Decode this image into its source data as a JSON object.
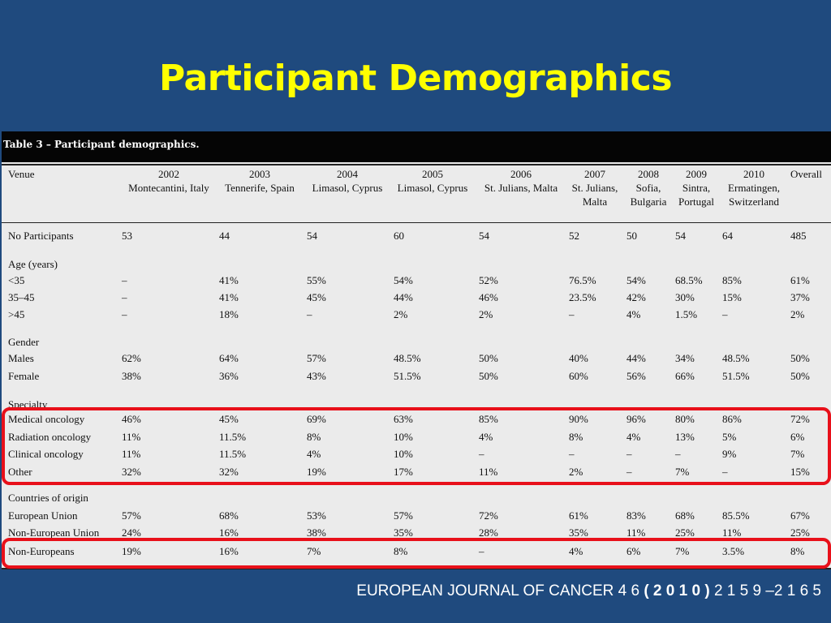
{
  "slide": {
    "title": "Participant Demographics"
  },
  "table": {
    "caption": "Table 3 – Participant demographics.",
    "columns": [
      {
        "year": "",
        "place": "Venue",
        "place2": ""
      },
      {
        "year": "2002",
        "place": "Montecantini, Italy",
        "place2": ""
      },
      {
        "year": "2003",
        "place": "Tennerife, Spain",
        "place2": ""
      },
      {
        "year": "2004",
        "place": "Limasol, Cyprus",
        "place2": ""
      },
      {
        "year": "2005",
        "place": "Limasol, Cyprus",
        "place2": ""
      },
      {
        "year": "2006",
        "place": "St. Julians, Malta",
        "place2": ""
      },
      {
        "year": "2007",
        "place": "St. Julians,",
        "place2": "Malta"
      },
      {
        "year": "2008",
        "place": "Sofia,",
        "place2": "Bulgaria"
      },
      {
        "year": "2009",
        "place": "Sintra,",
        "place2": "Portugal"
      },
      {
        "year": "2010",
        "place": "Ermatingen,",
        "place2": "Switzerland"
      },
      {
        "year": "Overall",
        "place": "",
        "place2": ""
      }
    ],
    "sections": {
      "age": "Age (years)",
      "gender": "Gender",
      "specialty": "Specialty",
      "countries": "Countries of origin"
    },
    "rows": [
      {
        "label": "No Participants",
        "values": [
          "53",
          "44",
          "54",
          "60",
          "54",
          "52",
          "50",
          "54",
          "64",
          "485"
        ]
      },
      {
        "label": "<35",
        "values": [
          "–",
          "41%",
          "55%",
          "54%",
          "52%",
          "76.5%",
          "54%",
          "68.5%",
          "85%",
          "61%"
        ]
      },
      {
        "label": "35–45",
        "values": [
          "–",
          "41%",
          "45%",
          "44%",
          "46%",
          "23.5%",
          "42%",
          "30%",
          "15%",
          "37%"
        ]
      },
      {
        "label": ">45",
        "values": [
          "–",
          "18%",
          "–",
          "2%",
          "2%",
          "–",
          "4%",
          "1.5%",
          "–",
          "2%"
        ]
      },
      {
        "label": "Males",
        "values": [
          "62%",
          "64%",
          "57%",
          "48.5%",
          "50%",
          "40%",
          "44%",
          "34%",
          "48.5%",
          "50%"
        ]
      },
      {
        "label": "Female",
        "values": [
          "38%",
          "36%",
          "43%",
          "51.5%",
          "50%",
          "60%",
          "56%",
          "66%",
          "51.5%",
          "50%"
        ]
      },
      {
        "label": "Medical oncology",
        "values": [
          "46%",
          "45%",
          "69%",
          "63%",
          "85%",
          "90%",
          "96%",
          "80%",
          "86%",
          "72%"
        ]
      },
      {
        "label": "Radiation oncology",
        "values": [
          "11%",
          "11.5%",
          "8%",
          "10%",
          "4%",
          "8%",
          "4%",
          "13%",
          "5%",
          "6%"
        ]
      },
      {
        "label": "Clinical oncology",
        "values": [
          "11%",
          "11.5%",
          "4%",
          "10%",
          "–",
          "–",
          "–",
          "–",
          "9%",
          "7%"
        ]
      },
      {
        "label": "Other",
        "values": [
          "32%",
          "32%",
          "19%",
          "17%",
          "11%",
          "2%",
          "–",
          "7%",
          "–",
          "15%"
        ]
      },
      {
        "label": "European Union",
        "values": [
          "57%",
          "68%",
          "53%",
          "57%",
          "72%",
          "61%",
          "83%",
          "68%",
          "85.5%",
          "67%"
        ]
      },
      {
        "label": "Non-European Union",
        "values": [
          "24%",
          "16%",
          "38%",
          "35%",
          "28%",
          "35%",
          "11%",
          "25%",
          "11%",
          "25%"
        ]
      },
      {
        "label": "Non-Europeans",
        "values": [
          "19%",
          "16%",
          "7%",
          "8%",
          "–",
          "4%",
          "6%",
          "7%",
          "3.5%",
          "8%"
        ]
      }
    ]
  },
  "footer": {
    "journal": "EUROPEAN JOURNAL OF CANCER 4 6",
    "year": "( 2 0 1 0 )",
    "pages": "2 1 5 9 –2 1 6 5"
  },
  "colors": {
    "background": "#1f4a7e",
    "title": "#ffff00",
    "highlight": "#e8101a"
  }
}
